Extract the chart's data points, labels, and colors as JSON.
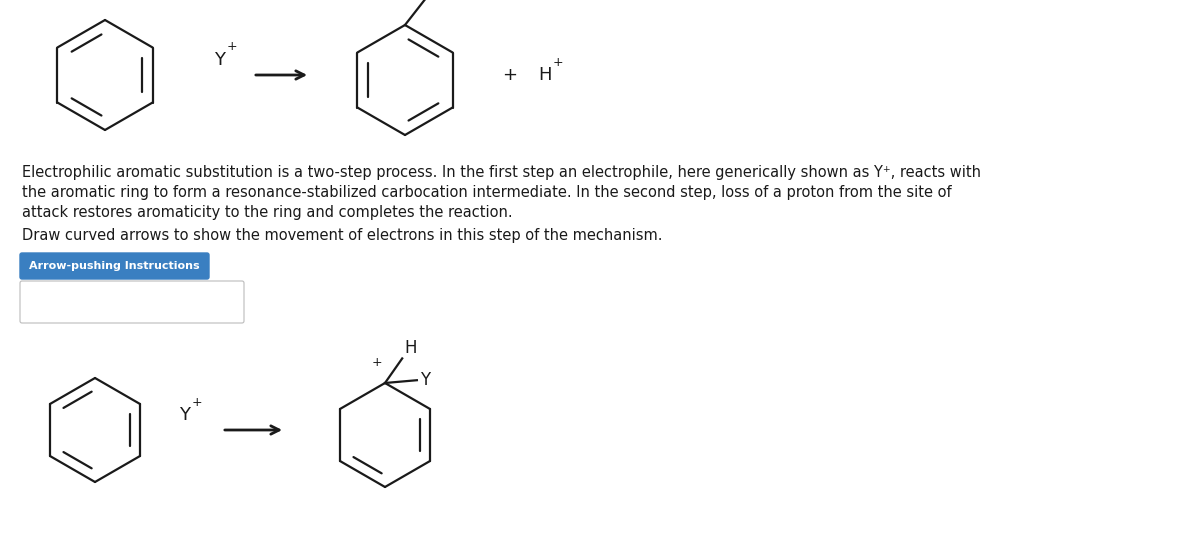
{
  "bg_color": "#ffffff",
  "text_color": "#1a1a1a",
  "blue_btn_color": "#3a7fc1",
  "blue_btn_text": "Arrow-pushing Instructions",
  "blue_btn_text_color": "#ffffff",
  "description_line1": "Electrophilic aromatic substitution is a two-step process. In the first step an electrophile, here generically shown as Y⁺, reacts with",
  "description_line2": "the aromatic ring to form a resonance-stabilized carbocation intermediate. In the second step, loss of a proton from the site of",
  "description_line3": "attack restores aromaticity to the ring and completes the reaction.",
  "draw_instruction": "Draw curved arrows to show the movement of electrons in this step of the mechanism.",
  "ring_color": "#1a1a1a",
  "ring_lw": 1.6,
  "font_size_body": 10.5,
  "icon_gray": "#aaaaaa",
  "icon_dark": "#1a1a1a"
}
